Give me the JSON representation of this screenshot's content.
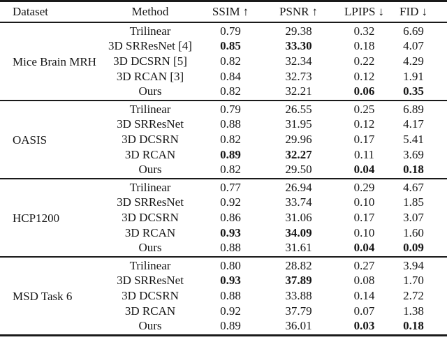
{
  "page": {
    "background": "#ffffff",
    "text_color": "#161616",
    "rule_color": "#1a1a1a"
  },
  "table": {
    "columns": [
      {
        "key": "dataset",
        "label": "Dataset",
        "arrow": ""
      },
      {
        "key": "method",
        "label": "Method",
        "arrow": ""
      },
      {
        "key": "ssim",
        "label": "SSIM",
        "arrow": "↑"
      },
      {
        "key": "psnr",
        "label": "PSNR",
        "arrow": "↑"
      },
      {
        "key": "lpips",
        "label": "LPIPS",
        "arrow": "↓"
      },
      {
        "key": "fid",
        "label": "FID",
        "arrow": "↓"
      }
    ],
    "groups": [
      {
        "dataset": "Mice Brain MRH",
        "rows": [
          {
            "method": "Trilinear",
            "ssim": "0.79",
            "psnr": "29.38",
            "lpips": "0.32",
            "fid": "6.69",
            "bold": []
          },
          {
            "method": "3D SRResNet [4]",
            "ssim": "0.85",
            "psnr": "33.30",
            "lpips": "0.18",
            "fid": "4.07",
            "bold": [
              "ssim",
              "psnr"
            ]
          },
          {
            "method": "3D DCSRN [5]",
            "ssim": "0.82",
            "psnr": "32.34",
            "lpips": "0.22",
            "fid": "4.29",
            "bold": []
          },
          {
            "method": "3D RCAN [3]",
            "ssim": "0.84",
            "psnr": "32.73",
            "lpips": "0.12",
            "fid": "1.91",
            "bold": []
          },
          {
            "method": "Ours",
            "ssim": "0.82",
            "psnr": "32.21",
            "lpips": "0.06",
            "fid": "0.35",
            "bold": [
              "lpips",
              "fid"
            ]
          }
        ]
      },
      {
        "dataset": "OASIS",
        "rows": [
          {
            "method": "Trilinear",
            "ssim": "0.79",
            "psnr": "26.55",
            "lpips": "0.25",
            "fid": "6.89",
            "bold": []
          },
          {
            "method": "3D SRResNet",
            "ssim": "0.88",
            "psnr": "31.95",
            "lpips": "0.12",
            "fid": "4.17",
            "bold": []
          },
          {
            "method": "3D DCSRN",
            "ssim": "0.82",
            "psnr": "29.96",
            "lpips": "0.17",
            "fid": "5.41",
            "bold": []
          },
          {
            "method": "3D RCAN",
            "ssim": "0.89",
            "psnr": "32.27",
            "lpips": "0.11",
            "fid": "3.69",
            "bold": [
              "ssim",
              "psnr"
            ]
          },
          {
            "method": "Ours",
            "ssim": "0.82",
            "psnr": "29.50",
            "lpips": "0.04",
            "fid": "0.18",
            "bold": [
              "lpips",
              "fid"
            ]
          }
        ]
      },
      {
        "dataset": "HCP1200",
        "rows": [
          {
            "method": "Trilinear",
            "ssim": "0.77",
            "psnr": "26.94",
            "lpips": "0.29",
            "fid": "4.67",
            "bold": []
          },
          {
            "method": "3D SRResNet",
            "ssim": "0.92",
            "psnr": "33.74",
            "lpips": "0.10",
            "fid": "1.85",
            "bold": []
          },
          {
            "method": "3D DCSRN",
            "ssim": "0.86",
            "psnr": "31.06",
            "lpips": "0.17",
            "fid": "3.07",
            "bold": []
          },
          {
            "method": "3D RCAN",
            "ssim": "0.93",
            "psnr": "34.09",
            "lpips": "0.10",
            "fid": "1.60",
            "bold": [
              "ssim",
              "psnr"
            ]
          },
          {
            "method": "Ours",
            "ssim": "0.88",
            "psnr": "31.61",
            "lpips": "0.04",
            "fid": "0.09",
            "bold": [
              "lpips",
              "fid"
            ]
          }
        ]
      },
      {
        "dataset": "MSD Task 6",
        "rows": [
          {
            "method": "Trilinear",
            "ssim": "0.80",
            "psnr": "28.82",
            "lpips": "0.27",
            "fid": "3.94",
            "bold": []
          },
          {
            "method": "3D SRResNet",
            "ssim": "0.93",
            "psnr": "37.89",
            "lpips": "0.08",
            "fid": "1.70",
            "bold": [
              "ssim",
              "psnr"
            ]
          },
          {
            "method": "3D DCSRN",
            "ssim": "0.88",
            "psnr": "33.88",
            "lpips": "0.14",
            "fid": "2.72",
            "bold": []
          },
          {
            "method": "3D RCAN",
            "ssim": "0.92",
            "psnr": "37.79",
            "lpips": "0.07",
            "fid": "1.38",
            "bold": []
          },
          {
            "method": "Ours",
            "ssim": "0.89",
            "psnr": "36.01",
            "lpips": "0.03",
            "fid": "0.18",
            "bold": [
              "lpips",
              "fid"
            ]
          }
        ]
      }
    ]
  }
}
